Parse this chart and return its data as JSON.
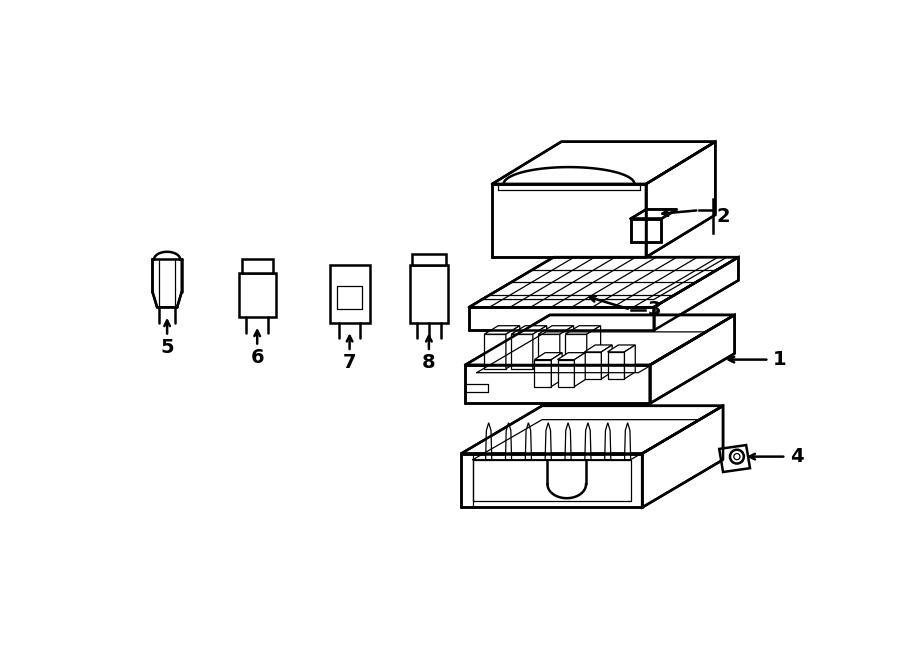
{
  "background_color": "#ffffff",
  "line_color": "#000000",
  "line_width": 1.8,
  "label_fontsize": 13,
  "thin_lw": 0.9
}
